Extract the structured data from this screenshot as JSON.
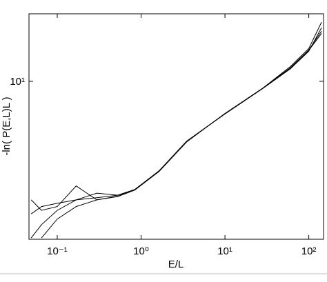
{
  "chart_data": {
    "type": "line",
    "xlabel": "E/L",
    "ylabel": "-ln( P(E,L)L )",
    "xscale": "log",
    "yscale": "log",
    "x": [
      0.0489,
      0.065,
      0.1,
      0.168,
      0.297,
      0.525,
      0.843,
      1.64,
      3.5,
      10,
      28.3,
      60.4,
      100,
      142
    ],
    "series": [
      {
        "color": "#000000",
        "values": [
          1.58,
          1.75,
          1.83,
          1.92,
          1.98,
          2.05,
          2.22,
          2.87,
          4.34,
          6.37,
          9.08,
          12.1,
          15.5,
          20.1
        ]
      },
      {
        "color": "#000000",
        "values": [
          1.92,
          1.66,
          1.75,
          2.33,
          1.92,
          2.01,
          2.2,
          2.85,
          4.3,
          6.4,
          9.1,
          12.3,
          15.8,
          22.8
        ]
      },
      {
        "color": "#000000",
        "values": [
          1.13,
          1.36,
          1.66,
          1.92,
          2.11,
          2.05,
          2.22,
          2.88,
          4.35,
          6.35,
          9.05,
          11.9,
          15.2,
          21.1
        ]
      },
      {
        "color": "#000000",
        "values": [
          null,
          1.13,
          1.47,
          1.75,
          1.92,
          2.02,
          2.21,
          2.87,
          4.34,
          6.37,
          9.1,
          12.0,
          15.4,
          19.5
        ]
      }
    ],
    "xlim": [
      0.046,
      150
    ],
    "ylim": [
      1.11,
      25.6
    ],
    "xticks": [
      {
        "value": 0.1,
        "label": "10⁻¹"
      },
      {
        "value": 1,
        "label": "10⁰"
      },
      {
        "value": 10,
        "label": "10¹"
      },
      {
        "value": 100,
        "label": "10²"
      }
    ],
    "yticks": [
      {
        "value": 10,
        "label": "10¹"
      }
    ],
    "grid": false
  }
}
